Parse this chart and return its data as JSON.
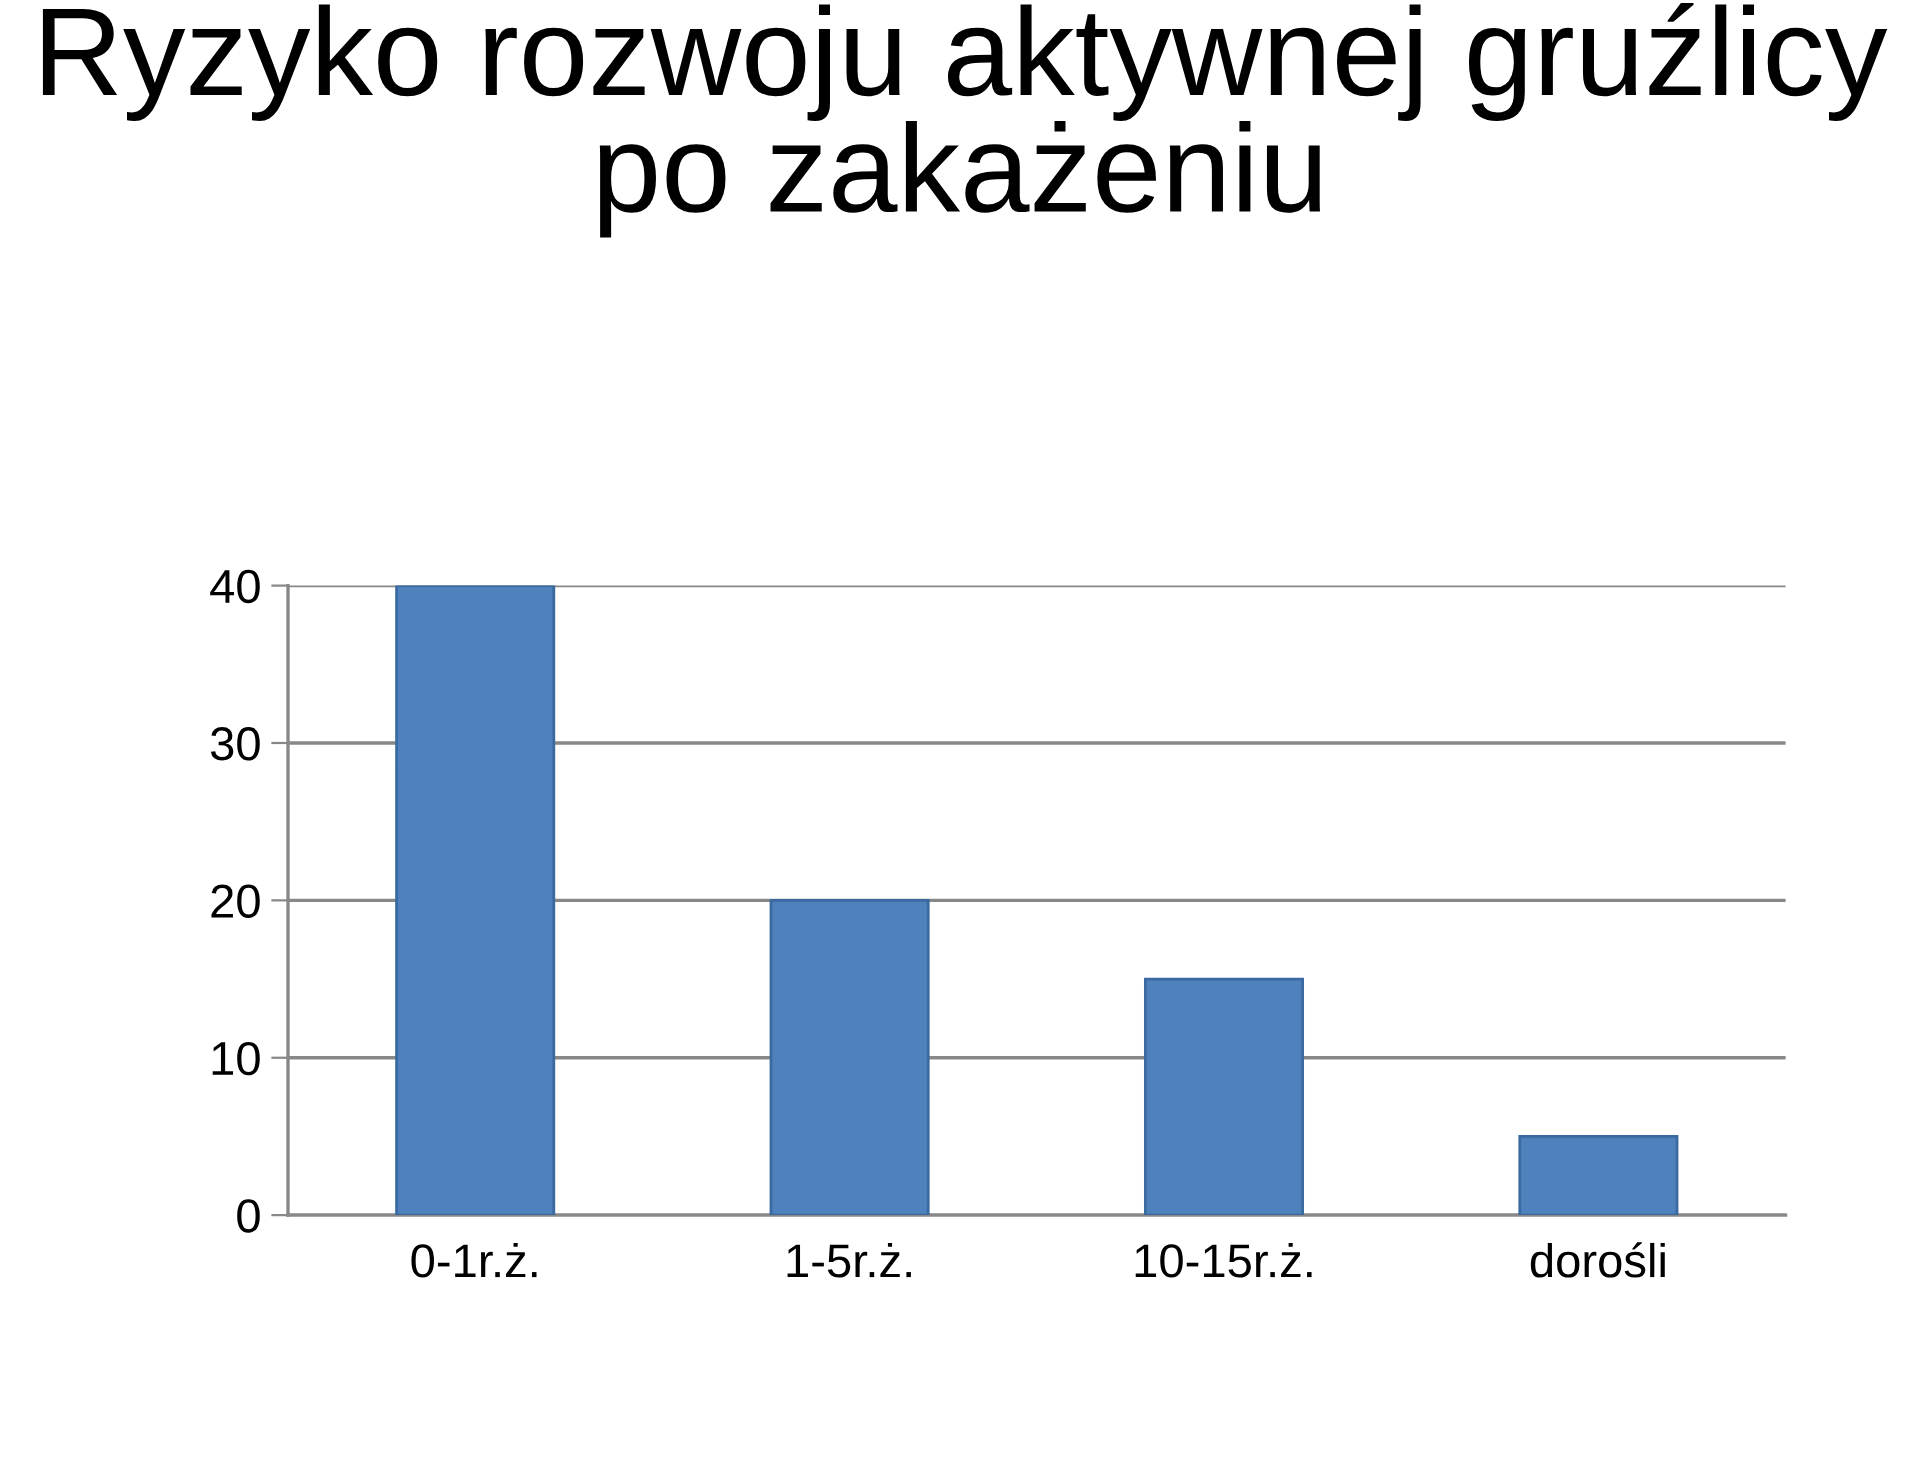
{
  "chart_data": {
    "type": "bar",
    "title": "Ryzyko rozwoju aktywnej gruźlicy\npo zakażeniu",
    "categories": [
      "0-1r.ż.",
      "1-5r.ż.",
      "10-15r.ż.",
      "dorośli"
    ],
    "values": [
      40,
      20,
      15,
      5
    ],
    "color": "#4f81bd",
    "ylim": [
      0,
      40
    ],
    "yticks": [
      0,
      10,
      20,
      30,
      40
    ],
    "grid": "y",
    "legend": false
  }
}
